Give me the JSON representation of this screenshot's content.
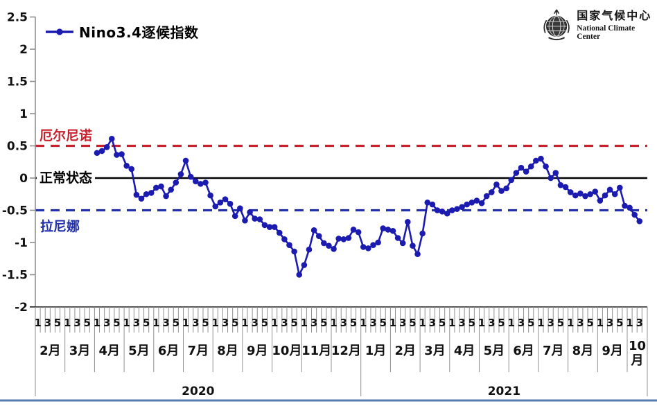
{
  "legend": {
    "series_label": "Nino3.4逐候指数"
  },
  "logo": {
    "name_cn": "国家气候中心",
    "name_en": "National Climate Center"
  },
  "chart_data": {
    "type": "line",
    "title": "Nino3.4逐候指数",
    "series_name": "Nino3.4逐候指数",
    "series_color": "#1b1bb0",
    "grid": "off",
    "legend_position": "top-left",
    "y_axis": {
      "min": -2,
      "max": 2.5,
      "step": 0.5,
      "ticks": [
        {
          "label": "2.5",
          "value": 2.5
        },
        {
          "label": "2",
          "value": 2
        },
        {
          "label": "1.5",
          "value": 1.5
        },
        {
          "label": "1",
          "value": 1
        },
        {
          "label": "0.5",
          "value": 0.5
        },
        {
          "label": "0",
          "value": 0
        },
        {
          "label": "-0.5",
          "value": -0.5
        },
        {
          "label": "-1",
          "value": -1
        },
        {
          "label": "-1.5",
          "value": -1.5
        },
        {
          "label": "-2",
          "value": -2
        }
      ]
    },
    "reference_lines": [
      {
        "id": "el-nino",
        "label": "厄尔尼诺",
        "value": 0.5,
        "style": "dashed",
        "color": "#c8202c"
      },
      {
        "id": "normal-state",
        "label": "正常状态",
        "value": 0,
        "style": "solid",
        "color": "#000000"
      },
      {
        "id": "la-nina",
        "label": "拉尼娜",
        "value": -0.5,
        "style": "dashed",
        "color": "#2230aa"
      }
    ],
    "x_axis": {
      "pentad_labels_regular": [
        "1",
        "3",
        "5"
      ],
      "years": [
        "2020",
        "2021"
      ],
      "months": [
        {
          "label": "2月",
          "year": "2020"
        },
        {
          "label": "3月",
          "year": "2020"
        },
        {
          "label": "4月",
          "year": "2020"
        },
        {
          "label": "5月",
          "year": "2020"
        },
        {
          "label": "6月",
          "year": "2020"
        },
        {
          "label": "7月",
          "year": "2020"
        },
        {
          "label": "8月",
          "year": "2020"
        },
        {
          "label": "9月",
          "year": "2020"
        },
        {
          "label": "10月",
          "year": "2020"
        },
        {
          "label": "11月",
          "year": "2020"
        },
        {
          "label": "12月",
          "year": "2020"
        },
        {
          "label": "1月",
          "year": "2021"
        },
        {
          "label": "2月",
          "year": "2021"
        },
        {
          "label": "3月",
          "year": "2021"
        },
        {
          "label": "4月",
          "year": "2021"
        },
        {
          "label": "5月",
          "year": "2021"
        },
        {
          "label": "6月",
          "year": "2021"
        },
        {
          "label": "7月",
          "year": "2021"
        },
        {
          "label": "8月",
          "year": "2021"
        },
        {
          "label": "9月",
          "year": "2021"
        },
        {
          "label": "10月",
          "year": "2021",
          "span": 0.68,
          "pentad_labels": [
            "1",
            "3"
          ],
          "wrap": true
        }
      ]
    },
    "series_start": {
      "month_index": 2,
      "pentad": 1,
      "note_year": "2020"
    },
    "values": [
      0.39,
      0.42,
      0.48,
      0.61,
      0.36,
      0.37,
      0.19,
      0.14,
      -0.26,
      -0.32,
      -0.25,
      -0.23,
      -0.15,
      -0.13,
      -0.28,
      -0.18,
      -0.07,
      0.06,
      0.27,
      0.02,
      -0.05,
      -0.09,
      -0.07,
      -0.27,
      -0.44,
      -0.38,
      -0.33,
      -0.4,
      -0.59,
      -0.47,
      -0.66,
      -0.53,
      -0.63,
      -0.64,
      -0.73,
      -0.76,
      -0.76,
      -0.85,
      -0.95,
      -1.04,
      -1.14,
      -1.5,
      -1.35,
      -1.11,
      -0.81,
      -0.9,
      -1.01,
      -1.05,
      -1.1,
      -0.94,
      -0.95,
      -0.93,
      -0.8,
      -0.84,
      -1.07,
      -1.09,
      -1.04,
      -1.0,
      -0.78,
      -0.8,
      -0.82,
      -0.93,
      -1.01,
      -0.68,
      -1.05,
      -1.18,
      -0.86,
      -0.38,
      -0.41,
      -0.5,
      -0.52,
      -0.55,
      -0.5,
      -0.48,
      -0.45,
      -0.41,
      -0.38,
      -0.35,
      -0.39,
      -0.28,
      -0.22,
      -0.1,
      -0.2,
      -0.16,
      -0.03,
      0.08,
      0.16,
      0.1,
      0.18,
      0.27,
      0.3,
      0.18,
      0.0,
      0.08,
      -0.11,
      -0.14,
      -0.22,
      -0.27,
      -0.24,
      -0.28,
      -0.25,
      -0.21,
      -0.35,
      -0.27,
      -0.18,
      -0.25,
      -0.15,
      -0.43,
      -0.46,
      -0.57,
      -0.67
    ]
  }
}
